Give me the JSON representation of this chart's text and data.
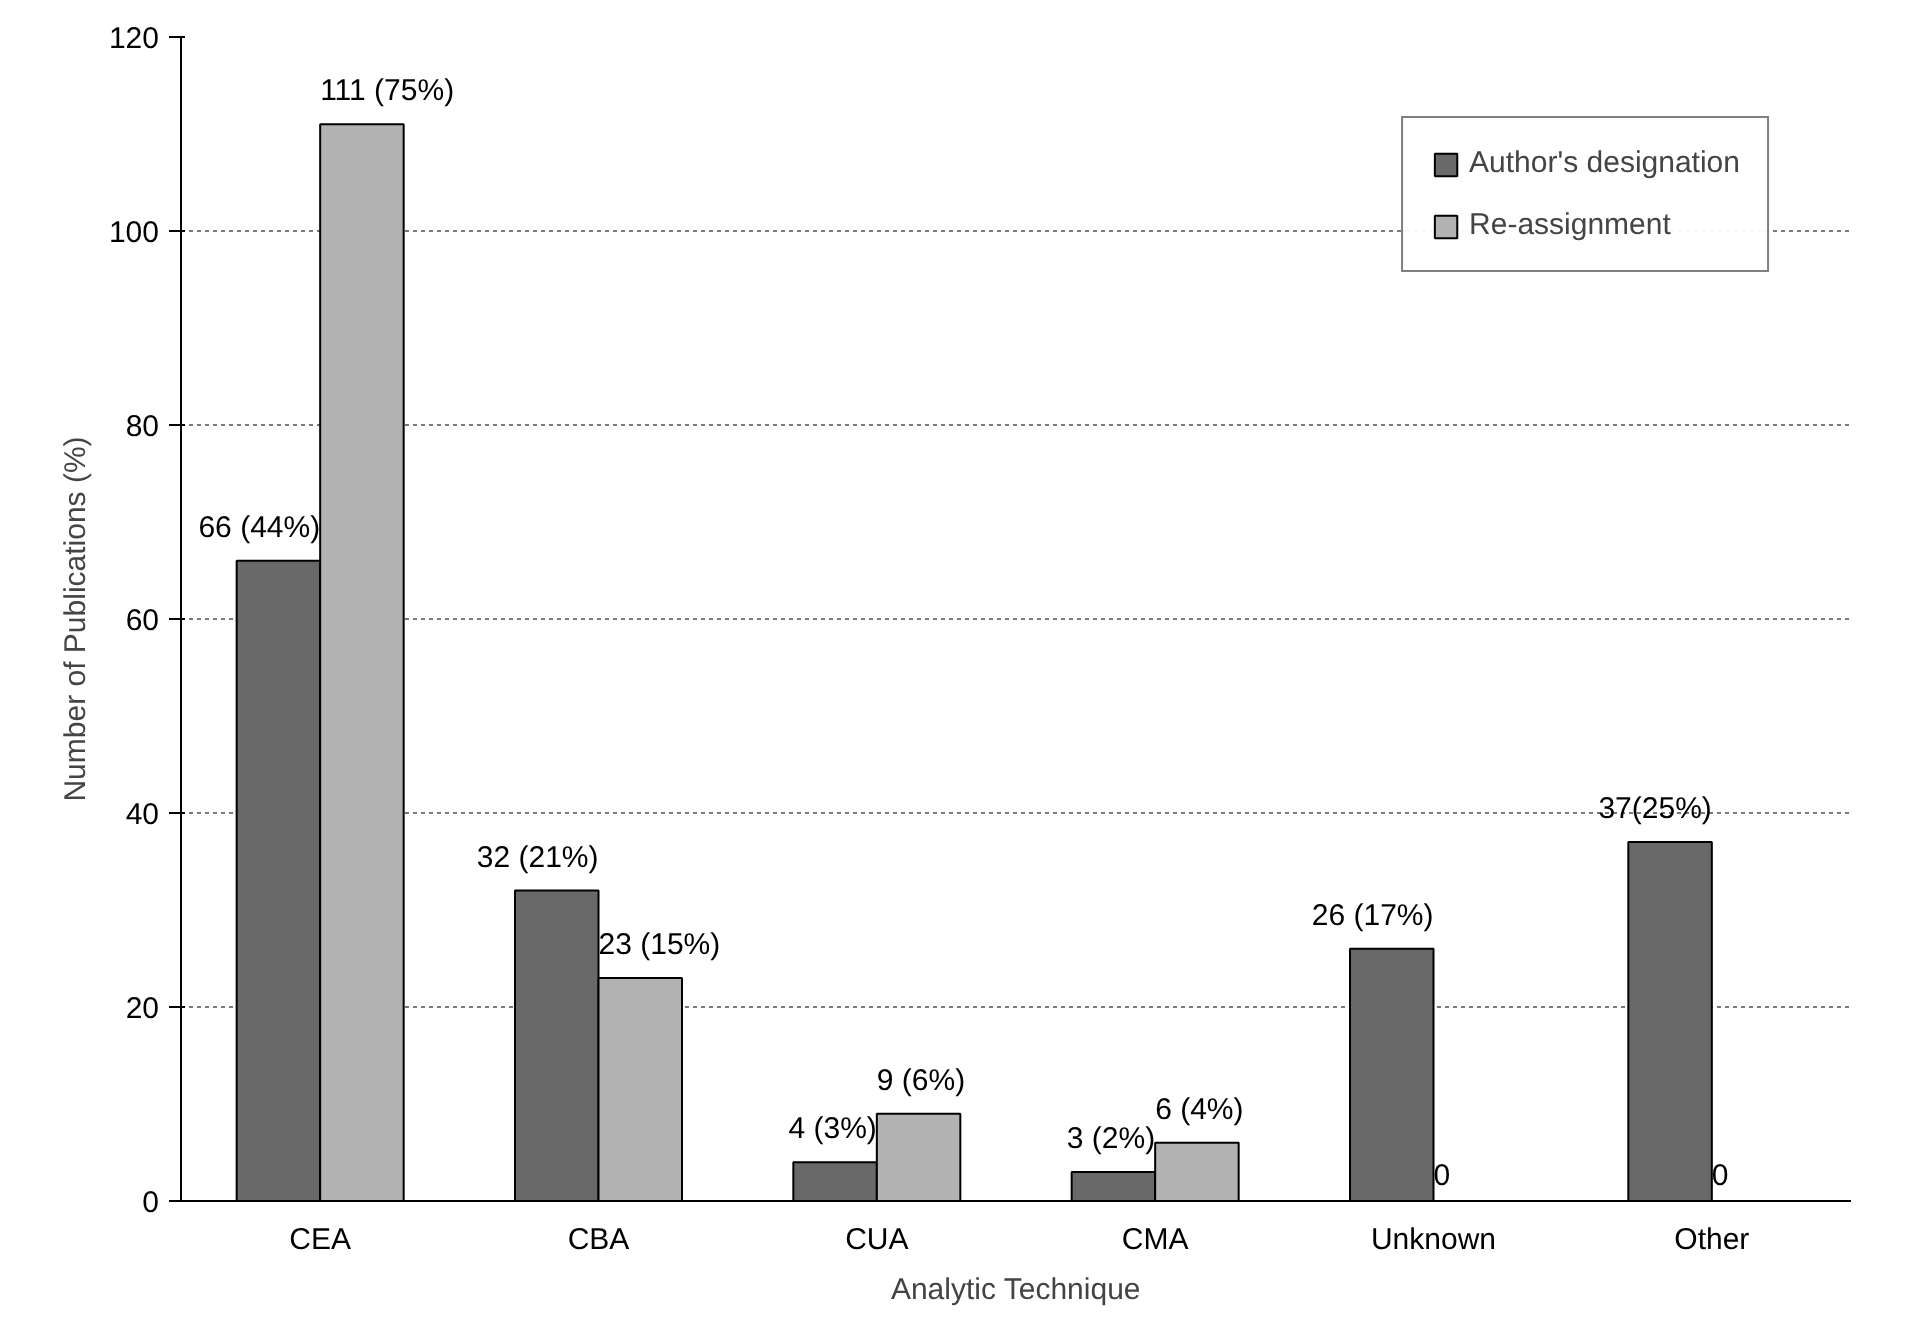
{
  "chart_data": {
    "type": "bar",
    "xlabel": "Analytic Technique",
    "ylabel": "Number of Publications (%)",
    "categories": [
      "CEA",
      "CBA",
      "CUA",
      "CMA",
      "Unknown",
      "Other"
    ],
    "series": [
      {
        "name": "Author's designation",
        "color": "#696969",
        "values": [
          66,
          32,
          4,
          3,
          26,
          37
        ],
        "value_labels": [
          "66 (44%)",
          "32 (21%)",
          "4 (3%)",
          "3 (2%)",
          "26 (17%)",
          "37(25%)"
        ]
      },
      {
        "name": "Re-assignment",
        "color": "#b2b2b2",
        "values": [
          111,
          23,
          9,
          6,
          0,
          0
        ],
        "value_labels": [
          "111 (75%)",
          "23 (15%)",
          "9 (6%)",
          "6 (4%)",
          "0",
          "0"
        ]
      }
    ],
    "ylim": [
      0,
      120
    ],
    "yticks": [
      0,
      20,
      40,
      60,
      80,
      100,
      120
    ],
    "grid": "y",
    "legend": "top right"
  }
}
